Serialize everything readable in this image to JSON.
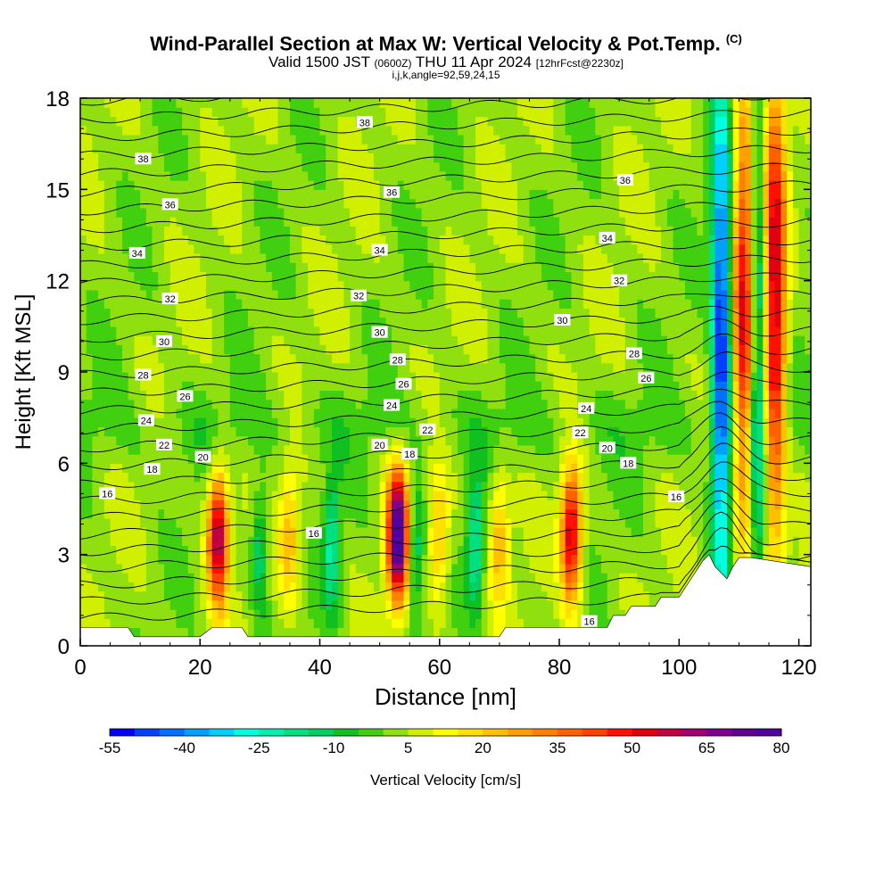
{
  "titles": {
    "main": "Wind-Parallel Section at Max W: Vertical Velocity & Pot.Temp.",
    "copyright": "(C)",
    "valid_a": "Valid 1500 JST",
    "valid_b": "(0600Z)",
    "valid_c": "THU 11 Apr 2024",
    "valid_d": "[12hrFcst@2230z]",
    "indices": "i,j,k,angle=92,59,24,15"
  },
  "colors": {
    "terrain": "#ffffff",
    "frame": "#000000",
    "contour": "#000000"
  },
  "chart_data": {
    "type": "heatmap",
    "xlabel": "Distance [nm]",
    "ylabel": "Height [Kft MSL]",
    "xlim": [
      0,
      122
    ],
    "ylim": [
      0,
      18
    ],
    "xticks": [
      0,
      20,
      40,
      60,
      80,
      100,
      120
    ],
    "yticks": [
      0,
      3,
      6,
      9,
      12,
      15,
      18
    ],
    "colorbar": {
      "label": "Vertical Velocity [cm/s]",
      "labels": [
        "-55",
        "-40",
        "-25",
        "-10",
        "5",
        "20",
        "35",
        "50",
        "65",
        "80"
      ],
      "label_values": [
        -55,
        -40,
        -25,
        -10,
        5,
        20,
        35,
        50,
        65,
        80
      ],
      "step": 5,
      "colors": [
        "#0000ff",
        "#0040ff",
        "#0070ff",
        "#00a0ff",
        "#00d0ff",
        "#00ffe0",
        "#00f0b0",
        "#00e080",
        "#00d060",
        "#10c020",
        "#40d010",
        "#90e010",
        "#d0f000",
        "#ffff00",
        "#ffe000",
        "#ffc000",
        "#ffa000",
        "#ff8000",
        "#ff6000",
        "#ff4000",
        "#ff1000",
        "#e00010",
        "#c00040",
        "#a00070",
        "#800090",
        "#600090",
        "#5000a0"
      ]
    },
    "updrafts": [
      {
        "x": 23,
        "peak": 60
      },
      {
        "x": 35,
        "peak": 22
      },
      {
        "x": 53,
        "peak": 80
      },
      {
        "x": 60,
        "peak": 22
      },
      {
        "x": 70,
        "peak": 22
      },
      {
        "x": 82,
        "peak": 55
      },
      {
        "x": 111,
        "peak": 50
      },
      {
        "x": 116,
        "peak": 55
      }
    ],
    "downdrafts": [
      {
        "x": 30,
        "peak": -20
      },
      {
        "x": 42,
        "peak": -25
      },
      {
        "x": 56,
        "peak": -20
      },
      {
        "x": 66,
        "peak": -25
      },
      {
        "x": 107,
        "peak": -55
      },
      {
        "x": 113,
        "peak": -35
      }
    ],
    "terrain_profile": {
      "x": [
        0,
        8,
        9,
        20,
        22,
        27,
        28,
        70,
        71,
        88,
        89,
        91,
        92,
        96,
        97,
        100,
        101,
        102,
        103,
        104,
        105,
        106,
        107,
        108,
        109,
        110,
        111,
        112,
        122
      ],
      "height": [
        0.6,
        0.6,
        0.3,
        0.3,
        0.6,
        0.6,
        0.3,
        0.3,
        0.6,
        0.6,
        1.0,
        1.0,
        1.3,
        1.3,
        1.6,
        1.6,
        1.9,
        2.2,
        2.5,
        2.8,
        3.0,
        2.6,
        2.4,
        2.2,
        2.6,
        2.9,
        2.9,
        2.9,
        2.6
      ]
    },
    "isentrope_labels": [
      {
        "text": "38",
        "x": 10.5,
        "y": 16.0
      },
      {
        "text": "38",
        "x": 47.5,
        "y": 17.2
      },
      {
        "text": "36",
        "x": 15,
        "y": 14.5
      },
      {
        "text": "36",
        "x": 52,
        "y": 14.9
      },
      {
        "text": "36",
        "x": 91,
        "y": 15.3
      },
      {
        "text": "34",
        "x": 9.5,
        "y": 12.9
      },
      {
        "text": "34",
        "x": 50,
        "y": 13.0
      },
      {
        "text": "34",
        "x": 88,
        "y": 13.4
      },
      {
        "text": "32",
        "x": 15,
        "y": 11.4
      },
      {
        "text": "32",
        "x": 46.5,
        "y": 11.5
      },
      {
        "text": "32",
        "x": 90,
        "y": 12.0
      },
      {
        "text": "30",
        "x": 14,
        "y": 10.0
      },
      {
        "text": "30",
        "x": 50,
        "y": 10.3
      },
      {
        "text": "30",
        "x": 80.5,
        "y": 10.7
      },
      {
        "text": "28",
        "x": 10.5,
        "y": 8.9
      },
      {
        "text": "28",
        "x": 53,
        "y": 9.4
      },
      {
        "text": "28",
        "x": 92.5,
        "y": 9.6
      },
      {
        "text": "26",
        "x": 17.5,
        "y": 8.2
      },
      {
        "text": "26",
        "x": 54,
        "y": 8.6
      },
      {
        "text": "26",
        "x": 94.5,
        "y": 8.8
      },
      {
        "text": "24",
        "x": 11,
        "y": 7.4
      },
      {
        "text": "24",
        "x": 52,
        "y": 7.9
      },
      {
        "text": "24",
        "x": 84.5,
        "y": 7.8
      },
      {
        "text": "22",
        "x": 14,
        "y": 6.6
      },
      {
        "text": "22",
        "x": 58,
        "y": 7.1
      },
      {
        "text": "22",
        "x": 83.5,
        "y": 7.0
      },
      {
        "text": "20",
        "x": 20.5,
        "y": 6.2
      },
      {
        "text": "20",
        "x": 50,
        "y": 6.6
      },
      {
        "text": "20",
        "x": 88,
        "y": 6.5
      },
      {
        "text": "18",
        "x": 12,
        "y": 5.8
      },
      {
        "text": "18",
        "x": 55,
        "y": 6.3
      },
      {
        "text": "18",
        "x": 91.5,
        "y": 6.0
      },
      {
        "text": "16",
        "x": 4.5,
        "y": 5.0
      },
      {
        "text": "16",
        "x": 39,
        "y": 3.7
      },
      {
        "text": "16",
        "x": 85,
        "y": 0.8
      },
      {
        "text": "16",
        "x": 99.5,
        "y": 4.9
      }
    ]
  }
}
